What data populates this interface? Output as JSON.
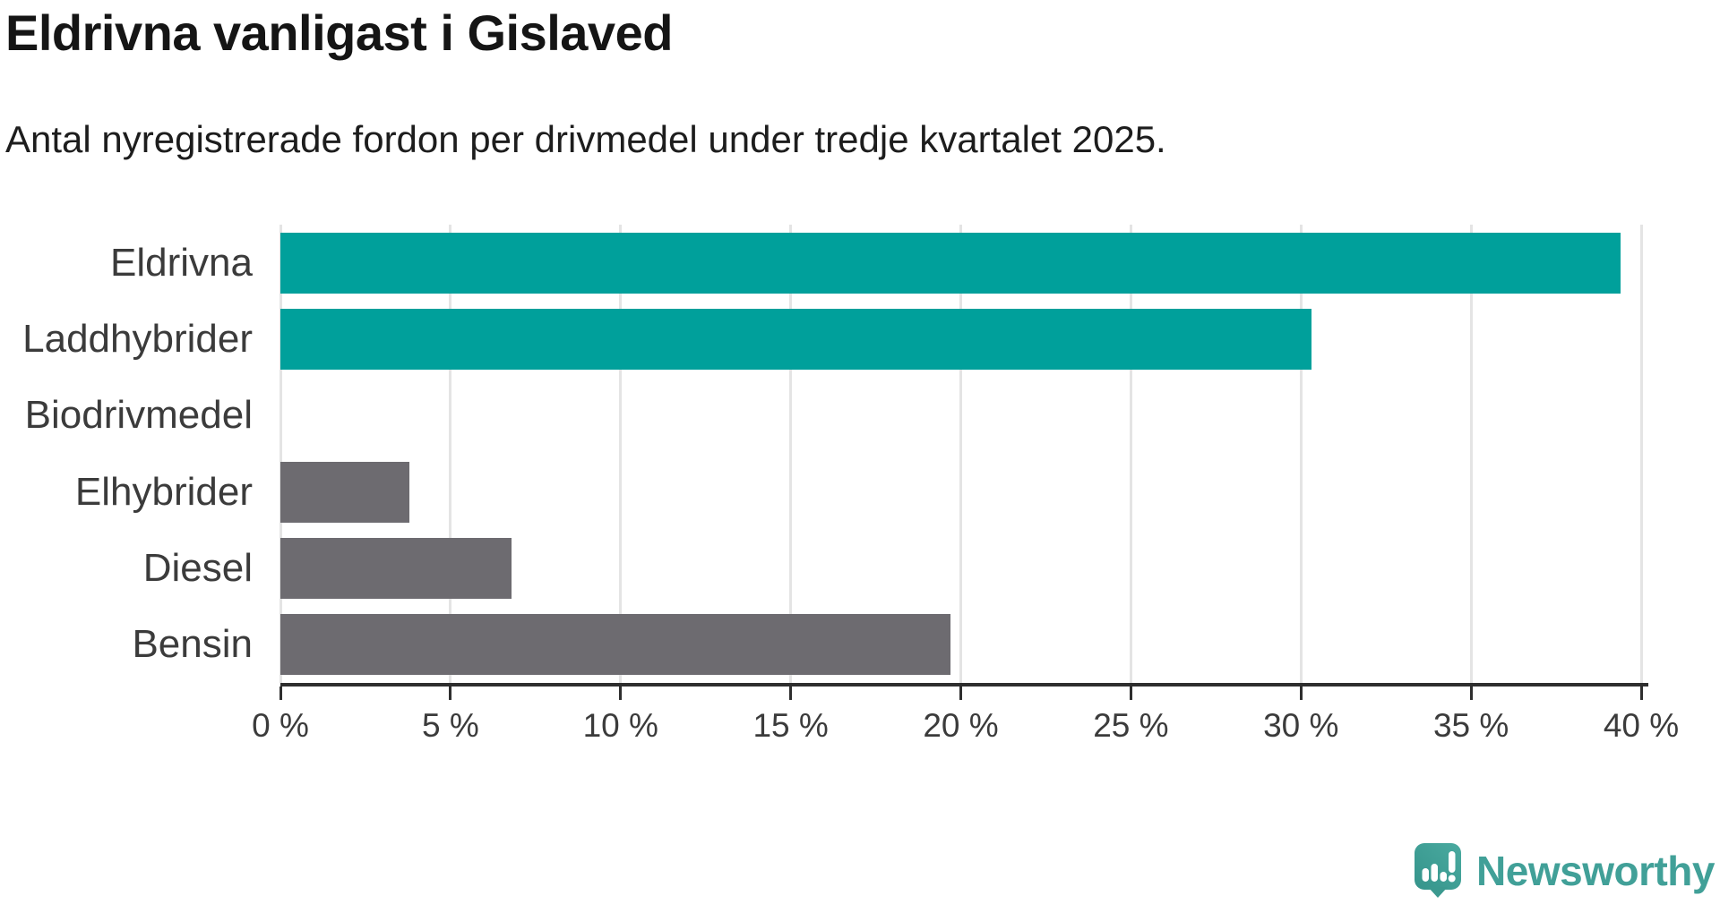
{
  "header": {
    "title": "Eldrivna vanligast i Gislaved",
    "subtitle": "Antal nyregistrerade fordon per drivmedel under tredje kvartalet 2025."
  },
  "colors": {
    "highlight_bar": "#00a09b",
    "default_bar": "#6d6b70",
    "gridline": "#e4e4e4",
    "axis": "#2e2e2e",
    "text": "#3b3b3b",
    "logo_teal": "#41a098",
    "logo_teal_dark": "#35948b"
  },
  "chart_data": {
    "type": "bar",
    "orientation": "horizontal",
    "title": "Eldrivna vanligast i Gislaved",
    "subtitle": "Antal nyregistrerade fordon per drivmedel under tredje kvartalet 2025.",
    "categories": [
      "Eldrivna",
      "Laddhybrider",
      "Biodrivmedel",
      "Elhybrider",
      "Diesel",
      "Bensin"
    ],
    "values": [
      39.4,
      30.3,
      0,
      3.8,
      6.8,
      19.7
    ],
    "unit": "%",
    "highlight_indices": [
      0,
      1
    ],
    "xlim": [
      0,
      40
    ],
    "xticks": [
      0,
      5,
      10,
      15,
      20,
      25,
      30,
      35,
      40
    ],
    "xtick_labels": [
      "0 %",
      "5 %",
      "10 %",
      "15 %",
      "20 %",
      "25 %",
      "30 %",
      "35 %",
      "40 %"
    ],
    "grid": "vertical-only",
    "legend": "none"
  },
  "footer": {
    "brand": "Newsworthy",
    "logo_icon": "newsworthy-speech-bubble-bar-chart-icon"
  }
}
